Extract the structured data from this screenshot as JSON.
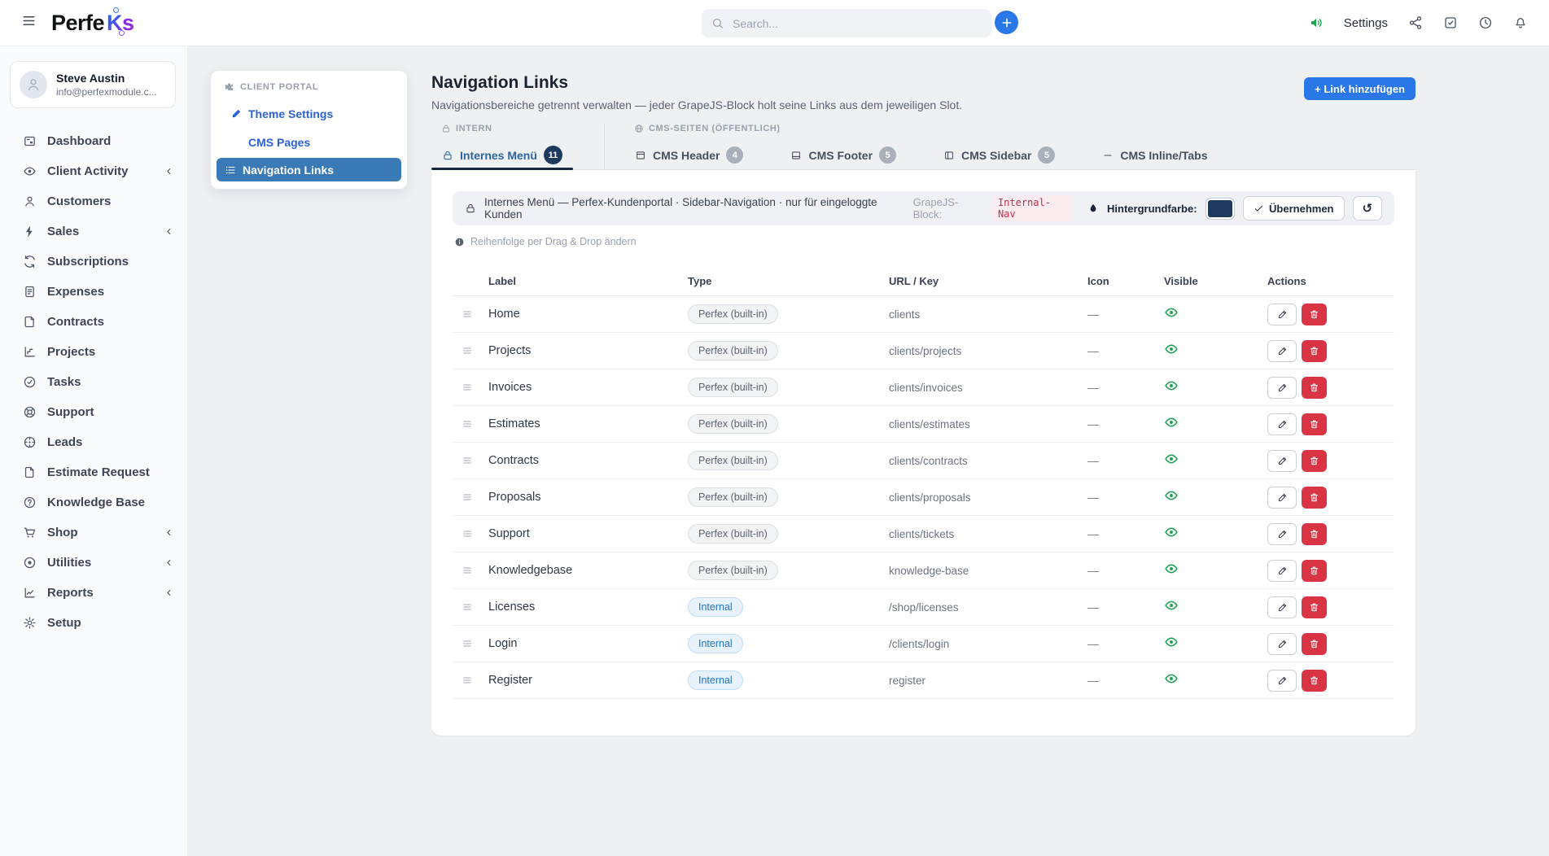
{
  "header": {
    "logo": {
      "part1": "Perfe",
      "part2": "K",
      "part3": "s"
    },
    "search_placeholder": "Search...",
    "settings_label": "Settings"
  },
  "sidebar": {
    "user": {
      "name": "Steve Austin",
      "email": "info@perfexmodule.c..."
    },
    "items": [
      {
        "label": "Dashboard",
        "icon": "dashboard",
        "expandable": false
      },
      {
        "label": "Client Activity",
        "icon": "eye",
        "expandable": true
      },
      {
        "label": "Customers",
        "icon": "person",
        "expandable": false
      },
      {
        "label": "Sales",
        "icon": "lightning",
        "expandable": true
      },
      {
        "label": "Subscriptions",
        "icon": "refresh",
        "expandable": false
      },
      {
        "label": "Expenses",
        "icon": "document",
        "expandable": false
      },
      {
        "label": "Contracts",
        "icon": "contract",
        "expandable": false
      },
      {
        "label": "Projects",
        "icon": "chart-steps",
        "expandable": false
      },
      {
        "label": "Tasks",
        "icon": "check-circle",
        "expandable": false
      },
      {
        "label": "Support",
        "icon": "life-ring",
        "expandable": false
      },
      {
        "label": "Leads",
        "icon": "target",
        "expandable": false
      },
      {
        "label": "Estimate Request",
        "icon": "file",
        "expandable": false
      },
      {
        "label": "Knowledge Base",
        "icon": "question-circle",
        "expandable": false
      },
      {
        "label": "Shop",
        "icon": "cart",
        "expandable": true
      },
      {
        "label": "Utilities",
        "icon": "disc",
        "expandable": true
      },
      {
        "label": "Reports",
        "icon": "line-chart",
        "expandable": true
      },
      {
        "label": "Setup",
        "icon": "gear",
        "expandable": false
      }
    ]
  },
  "client_portal": {
    "title": "CLIENT PORTAL",
    "items": [
      {
        "label": "Theme Settings",
        "icon": "brush",
        "active": false
      },
      {
        "label": "CMS Pages",
        "icon": null,
        "active": false
      },
      {
        "label": "Navigation Links",
        "icon": "list",
        "active": true
      }
    ]
  },
  "page": {
    "title": "Navigation Links",
    "subtitle": "Navigationsbereiche getrennt verwalten — jeder GrapeJS-Block holt seine Links aus dem jeweiligen Slot.",
    "add_button": "+ Link hinzufügen"
  },
  "tab_sections": [
    {
      "label": "INTERN",
      "icon": "lock",
      "tabs": [
        {
          "label": "Internes Menü",
          "icon": "lock",
          "badge": "11",
          "badge_variant": "navy",
          "active": true
        }
      ]
    },
    {
      "label": "CMS-SEITEN (ÖFFENTLICH)",
      "icon": "globe",
      "tabs": [
        {
          "label": "CMS Header",
          "icon": "layout-header",
          "badge": "4",
          "badge_variant": "gray",
          "active": false
        },
        {
          "label": "CMS Footer",
          "icon": "layout-footer",
          "badge": "5",
          "badge_variant": "gray",
          "active": false
        },
        {
          "label": "CMS Sidebar",
          "icon": "layout-sidebar",
          "badge": "5",
          "badge_variant": "gray",
          "active": false
        },
        {
          "label": "CMS Inline/Tabs",
          "icon": "dash",
          "badge": null,
          "badge_variant": null,
          "active": false
        }
      ]
    }
  ],
  "info_bar": {
    "description": "Internes Menü — Perfex-Kundenportal · Sidebar-Navigation · nur für eingeloggte Kunden",
    "grapejs_label": "GrapeJS-Block:",
    "grapejs_block": "Internal-Nav",
    "bg_color_label": "Hintergrundfarbe:",
    "bg_color_value": "#1e3a5e",
    "apply_button": "Übernehmen"
  },
  "drag_hint": "Reihenfolge per Drag & Drop ändern",
  "table": {
    "columns": [
      "Label",
      "Type",
      "URL / Key",
      "Icon",
      "Visible",
      "Actions"
    ],
    "rows": [
      {
        "label": "Home",
        "type": "Perfex (built-in)",
        "type_variant": "builtin",
        "url": "clients",
        "icon": "—",
        "visible": true
      },
      {
        "label": "Projects",
        "type": "Perfex (built-in)",
        "type_variant": "builtin",
        "url": "clients/projects",
        "icon": "—",
        "visible": true
      },
      {
        "label": "Invoices",
        "type": "Perfex (built-in)",
        "type_variant": "builtin",
        "url": "clients/invoices",
        "icon": "—",
        "visible": true
      },
      {
        "label": "Estimates",
        "type": "Perfex (built-in)",
        "type_variant": "builtin",
        "url": "clients/estimates",
        "icon": "—",
        "visible": true
      },
      {
        "label": "Contracts",
        "type": "Perfex (built-in)",
        "type_variant": "builtin",
        "url": "clients/contracts",
        "icon": "—",
        "visible": true
      },
      {
        "label": "Proposals",
        "type": "Perfex (built-in)",
        "type_variant": "builtin",
        "url": "clients/proposals",
        "icon": "—",
        "visible": true
      },
      {
        "label": "Support",
        "type": "Perfex (built-in)",
        "type_variant": "builtin",
        "url": "clients/tickets",
        "icon": "—",
        "visible": true
      },
      {
        "label": "Knowledgebase",
        "type": "Perfex (built-in)",
        "type_variant": "builtin",
        "url": "knowledge-base",
        "icon": "—",
        "visible": true
      },
      {
        "label": "Licenses",
        "type": "Internal",
        "type_variant": "internal",
        "url": "/shop/licenses",
        "icon": "—",
        "visible": true
      },
      {
        "label": "Login",
        "type": "Internal",
        "type_variant": "internal",
        "url": "/clients/login",
        "icon": "—",
        "visible": true
      },
      {
        "label": "Register",
        "type": "Internal",
        "type_variant": "internal",
        "url": "register",
        "icon": "—",
        "visible": true
      }
    ]
  },
  "colors": {
    "accent_blue": "#2a77e8",
    "active_nav_blue": "#3a7ab6",
    "badge_navy": "#1d3a5e",
    "delete_red": "#d93443",
    "visible_green": "#1ba24e",
    "code_red": "#c22e4e"
  }
}
